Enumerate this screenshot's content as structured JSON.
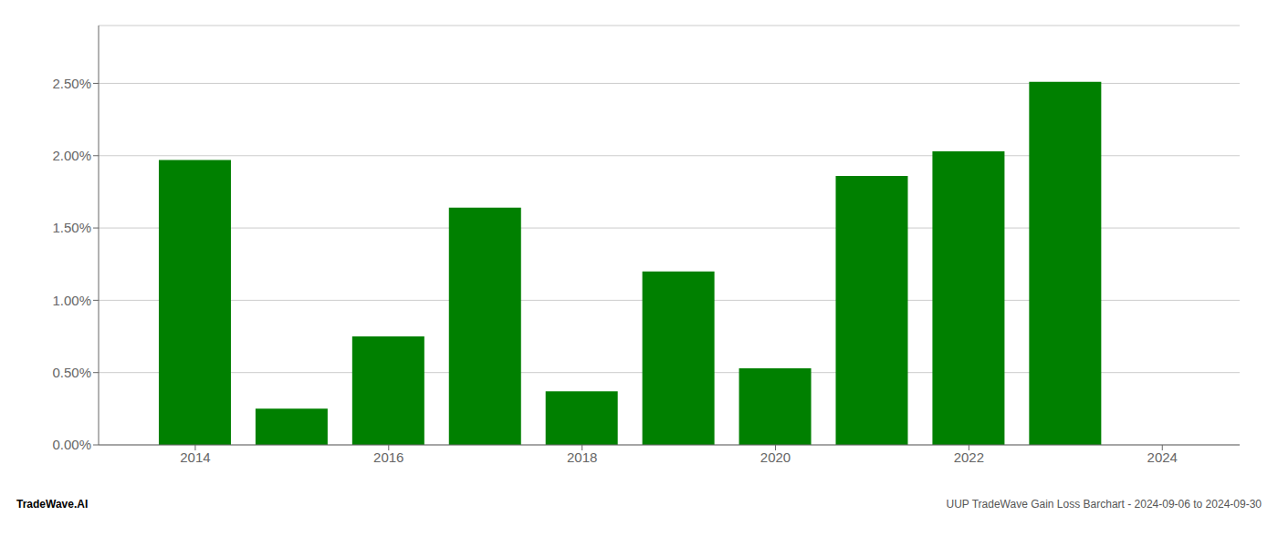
{
  "chart_data": {
    "type": "bar",
    "x": [
      2014,
      2015,
      2016,
      2017,
      2018,
      2019,
      2020,
      2021,
      2022,
      2023
    ],
    "values": [
      0.0197,
      0.0025,
      0.0075,
      0.0164,
      0.0037,
      0.012,
      0.0053,
      0.0186,
      0.0203,
      0.0251
    ],
    "color": "#008000",
    "xlim": [
      2013.0,
      2024.8
    ],
    "xticks": [
      2014,
      2016,
      2018,
      2020,
      2022,
      2024
    ],
    "ylim": [
      0,
      0.029
    ],
    "yticks": [
      {
        "value": 0.0,
        "label": "0.00%"
      },
      {
        "value": 0.005,
        "label": "0.50%"
      },
      {
        "value": 0.01,
        "label": "1.00%"
      },
      {
        "value": 0.015,
        "label": "1.50%"
      },
      {
        "value": 0.02,
        "label": "2.00%"
      },
      {
        "value": 0.025,
        "label": "2.50%"
      }
    ],
    "grid": true,
    "annotations": [
      "TradeWave.AI",
      "UUP TradeWave Gain Loss Barchart - 2024-09-06 to 2024-09-30"
    ]
  }
}
